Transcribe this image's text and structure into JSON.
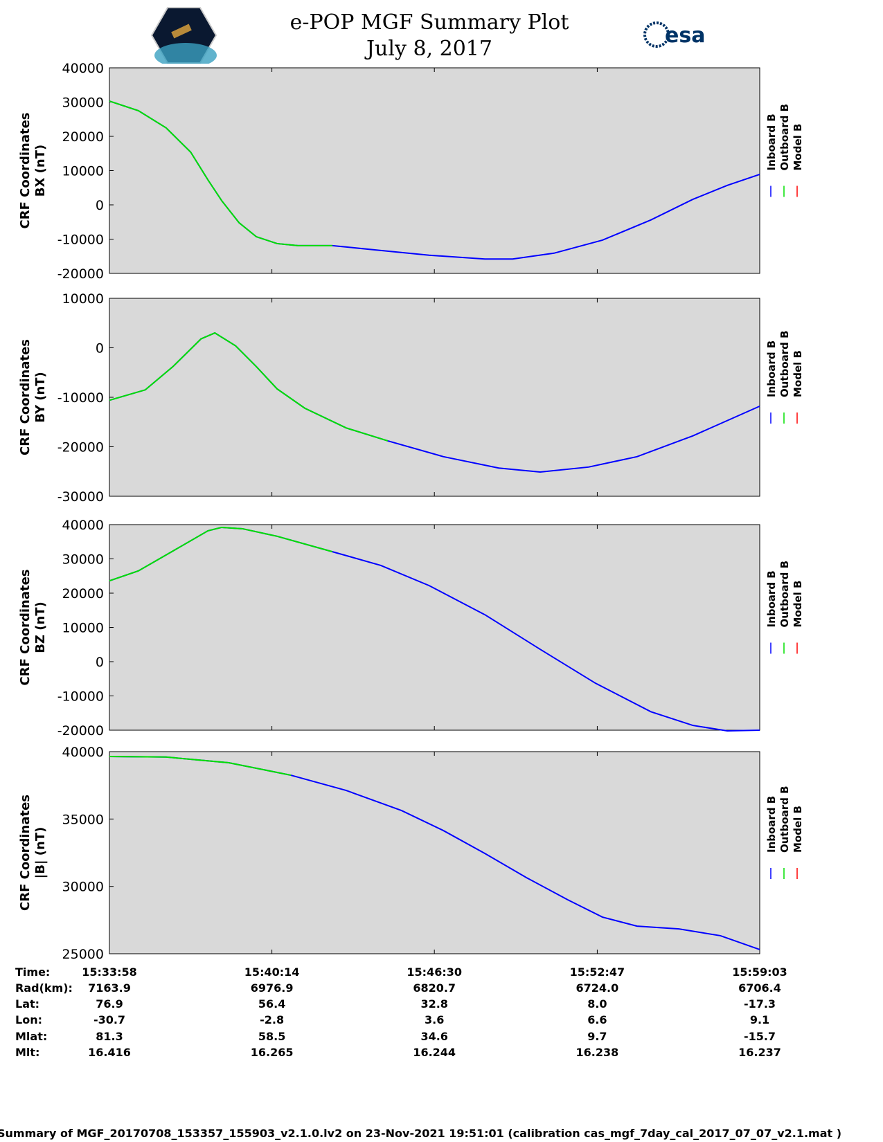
{
  "header": {
    "title": "e-POP MGF Summary Plot",
    "date": "July 8, 2017",
    "logo_left": "CASSIOPE",
    "logo_right": "esa"
  },
  "chart_data": [
    {
      "type": "line",
      "ylabel1": "CRF Coordinates",
      "ylabel2": "BX (nT)",
      "ylim": [
        -20000,
        40000
      ],
      "yticks": [
        40000,
        30000,
        20000,
        10000,
        0,
        -10000,
        -20000
      ],
      "x": [
        0,
        67,
        131,
        188,
        228,
        260,
        300,
        340,
        388,
        436,
        516,
        628,
        740,
        869,
        933,
        1029,
        1141,
        1253,
        1350,
        1430,
        1505
      ],
      "series": [
        {
          "name": "Inboard B",
          "color": "#0000ff",
          "values": [
            30300,
            27500,
            22500,
            15400,
            7300,
            1200,
            -5200,
            -9300,
            -11300,
            -11900,
            -11900,
            -13300,
            -14700,
            -15800,
            -15800,
            -14100,
            -10300,
            -4400,
            1600,
            5700,
            8900
          ]
        },
        {
          "name": "Outboard B",
          "color": "#00e000",
          "until": 548
        },
        {
          "name": "Model B",
          "color": "#ff0000"
        }
      ]
    },
    {
      "type": "line",
      "ylabel1": "CRF Coordinates",
      "ylabel2": "BY (nT)",
      "ylim": [
        -30000,
        10000
      ],
      "yticks": [
        10000,
        0,
        -10000,
        -20000,
        -30000
      ],
      "x": [
        0,
        83,
        147,
        212,
        244,
        292,
        340,
        388,
        452,
        548,
        644,
        773,
        901,
        997,
        1109,
        1221,
        1350,
        1505
      ],
      "series": [
        {
          "name": "Inboard B",
          "color": "#0000ff",
          "values": [
            -10600,
            -8500,
            -3800,
            1800,
            3000,
            400,
            -3800,
            -8300,
            -12200,
            -16200,
            -18800,
            -22000,
            -24300,
            -25100,
            -24100,
            -22000,
            -17800,
            -11800
          ]
        },
        {
          "name": "Outboard B",
          "color": "#00e000",
          "until": 644
        },
        {
          "name": "Model B",
          "color": "#ff0000"
        }
      ]
    },
    {
      "type": "line",
      "ylabel1": "CRF Coordinates",
      "ylabel2": "BZ (nT)",
      "ylim": [
        -20000,
        40000
      ],
      "yticks": [
        40000,
        30000,
        20000,
        10000,
        0,
        -10000,
        -20000
      ],
      "x": [
        0,
        67,
        147,
        228,
        260,
        308,
        388,
        516,
        628,
        740,
        869,
        997,
        1125,
        1253,
        1350,
        1430,
        1505
      ],
      "series": [
        {
          "name": "Inboard B",
          "color": "#0000ff",
          "values": [
            23600,
            26500,
            32300,
            38200,
            39200,
            38800,
            36600,
            32100,
            28100,
            22200,
            13700,
            3600,
            -6300,
            -14600,
            -18600,
            -20200,
            -20000
          ]
        },
        {
          "name": "Outboard B",
          "color": "#00e000",
          "until": 516
        },
        {
          "name": "Model B",
          "color": "#ff0000"
        }
      ]
    },
    {
      "type": "line",
      "ylabel1": "CRF Coordinates",
      "ylabel2": "|B| (nT)",
      "ylim": [
        25000,
        40000
      ],
      "yticks": [
        40000,
        35000,
        30000,
        25000
      ],
      "x": [
        0,
        131,
        276,
        420,
        548,
        676,
        773,
        869,
        965,
        1061,
        1141,
        1221,
        1318,
        1414,
        1505
      ],
      "series": [
        {
          "name": "Inboard B",
          "color": "#0000ff",
          "values": [
            39640,
            39600,
            39180,
            38250,
            37120,
            35630,
            34140,
            32440,
            30650,
            29000,
            27720,
            27050,
            26840,
            26340,
            25310
          ]
        },
        {
          "name": "Outboard B",
          "color": "#00e000",
          "until": 420
        },
        {
          "name": "Model B",
          "color": "#ff0000"
        }
      ]
    }
  ],
  "xaxis": {
    "duration_s": 1505,
    "ticks_s": [
      0,
      376,
      752,
      1129,
      1505
    ]
  },
  "table": {
    "labels": [
      "Time:",
      "Rad(km):",
      "Lat:",
      "Lon:",
      "Mlat:",
      "Mlt:"
    ],
    "columns": [
      [
        "15:33:58",
        "7163.9",
        "76.9",
        "-30.7",
        "81.3",
        "16.416"
      ],
      [
        "15:40:14",
        "6976.9",
        "56.4",
        "-2.8",
        "58.5",
        "16.265"
      ],
      [
        "15:46:30",
        "6820.7",
        "32.8",
        "3.6",
        "34.6",
        "16.244"
      ],
      [
        "15:52:47",
        "6724.0",
        "8.0",
        "6.6",
        "9.7",
        "16.238"
      ],
      [
        "15:59:03",
        "6706.4",
        "-17.3",
        "9.1",
        "-15.7",
        "16.237"
      ]
    ]
  },
  "footer": "Summary of MGF_20170708_153357_155903_v2.1.0.lv2 on 23-Nov-2021 19:51:01 (calibration cas_mgf_7day_cal_2017_07_07_v2.1.mat )"
}
